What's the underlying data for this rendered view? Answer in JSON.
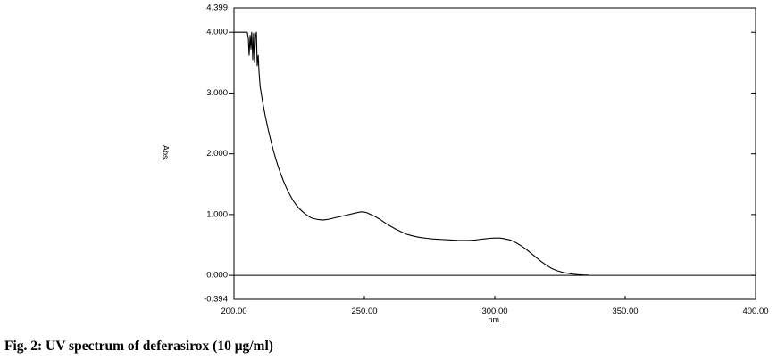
{
  "chart_data": {
    "type": "line",
    "xlabel": "nm.",
    "ylabel": "Abs.",
    "xlim": [
      200,
      400
    ],
    "ylim": [
      -0.394,
      4.399
    ],
    "x_ticks": [
      "200.00",
      "250.00",
      "300.00",
      "350.00",
      "400.00"
    ],
    "y_ticks": [
      "4.399",
      "4.000",
      "3.000",
      "2.000",
      "1.000",
      "0.000",
      "-0.394"
    ],
    "grid": false,
    "legend": "none",
    "reference_line_y": 0,
    "series": [
      {
        "x": [
          200,
          205.1,
          205.5,
          205.8,
          206.2,
          206.5,
          206.8,
          207.2,
          207.5,
          207.9,
          208.2,
          208.6,
          208.9,
          209.3,
          209.6,
          210,
          210.5,
          211,
          212,
          213,
          214,
          215,
          216,
          217,
          218,
          219,
          220,
          221,
          222,
          223,
          224,
          225,
          226,
          227,
          228,
          229,
          230,
          232,
          234,
          236,
          238,
          240,
          242,
          244,
          246,
          248,
          249,
          250,
          251,
          252,
          254,
          256,
          258,
          260,
          262,
          264,
          266,
          268,
          270,
          272,
          274,
          276,
          278,
          280,
          282,
          284,
          286,
          288,
          290,
          292,
          294,
          296,
          298,
          300,
          302,
          304,
          306,
          308,
          310,
          312,
          314,
          316,
          318,
          320,
          322,
          324,
          326,
          328,
          330,
          332,
          334,
          336
        ],
        "y": [
          4.0,
          4.0,
          3.9,
          3.62,
          3.95,
          3.72,
          4.0,
          3.55,
          3.98,
          3.5,
          3.92,
          4.0,
          3.45,
          3.62,
          3.35,
          3.12,
          2.98,
          2.85,
          2.62,
          2.42,
          2.24,
          2.07,
          1.92,
          1.78,
          1.66,
          1.55,
          1.45,
          1.36,
          1.28,
          1.21,
          1.15,
          1.1,
          1.06,
          1.02,
          0.99,
          0.96,
          0.94,
          0.92,
          0.91,
          0.92,
          0.94,
          0.96,
          0.98,
          1.0,
          1.02,
          1.04,
          1.045,
          1.04,
          1.03,
          1.01,
          0.97,
          0.92,
          0.86,
          0.81,
          0.76,
          0.72,
          0.68,
          0.655,
          0.635,
          0.62,
          0.61,
          0.6,
          0.595,
          0.59,
          0.585,
          0.58,
          0.575,
          0.575,
          0.575,
          0.58,
          0.59,
          0.6,
          0.61,
          0.615,
          0.615,
          0.6,
          0.58,
          0.54,
          0.49,
          0.43,
          0.36,
          0.29,
          0.22,
          0.16,
          0.11,
          0.075,
          0.05,
          0.033,
          0.02,
          0.012,
          0.006,
          0.002
        ]
      }
    ]
  },
  "caption": "Fig. 2: UV spectrum of deferasirox (10 μg/ml)",
  "colors": {
    "line": "#000000",
    "frame": "#000000",
    "background": "#ffffff"
  }
}
